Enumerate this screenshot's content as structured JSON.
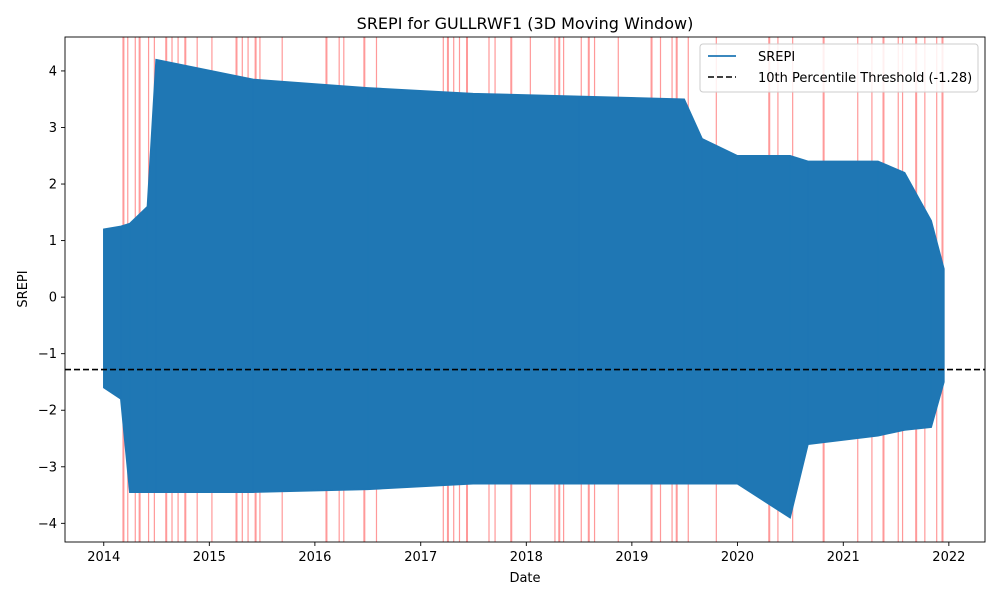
{
  "chart_data": {
    "type": "line",
    "title": "SREPI for GULLRWF1 (3D Moving Window)",
    "xlabel": "Date",
    "ylabel": "SREPI",
    "xlim": [
      "2013-08-20",
      "2022-05-06"
    ],
    "ylim": [
      -4.33,
      4.6
    ],
    "x_ticks": [
      "2014",
      "2015",
      "2016",
      "2017",
      "2018",
      "2019",
      "2020",
      "2021",
      "2022"
    ],
    "y_ticks": [
      -4,
      -3,
      -2,
      -1,
      0,
      1,
      2,
      3,
      4
    ],
    "grid": false,
    "legend_position": "top-right",
    "colors": {
      "series": "#1f77b4",
      "threshold": "#000000",
      "drought_band": "#ff8080"
    },
    "threshold": {
      "label": "10th Percentile Threshold (-1.28)",
      "value": -1.28
    },
    "series": [
      {
        "name": "SREPI",
        "envelope": [
          {
            "date": "2014-01-01",
            "min": -1.6,
            "max": 1.2
          },
          {
            "date": "2014-03-01",
            "min": -1.8,
            "max": 1.25
          },
          {
            "date": "2014-04-01",
            "min": -3.45,
            "max": 1.3
          },
          {
            "date": "2014-06-01",
            "min": -3.45,
            "max": 1.6
          },
          {
            "date": "2014-07-01",
            "min": -3.45,
            "max": 4.2
          },
          {
            "date": "2015-06-01",
            "min": -3.45,
            "max": 3.85
          },
          {
            "date": "2016-07-01",
            "min": -3.4,
            "max": 3.7
          },
          {
            "date": "2017-07-01",
            "min": -3.3,
            "max": 3.6
          },
          {
            "date": "2018-07-01",
            "min": -3.3,
            "max": 3.55
          },
          {
            "date": "2019-07-01",
            "min": -3.3,
            "max": 3.5
          },
          {
            "date": "2019-09-01",
            "min": -3.3,
            "max": 2.8
          },
          {
            "date": "2020-01-01",
            "min": -3.3,
            "max": 2.5
          },
          {
            "date": "2020-07-01",
            "min": -3.9,
            "max": 2.5
          },
          {
            "date": "2020-09-01",
            "min": -2.6,
            "max": 2.4
          },
          {
            "date": "2021-05-01",
            "min": -2.45,
            "max": 2.4
          },
          {
            "date": "2021-08-01",
            "min": -2.35,
            "max": 2.2
          },
          {
            "date": "2021-11-01",
            "min": -2.3,
            "max": 1.35
          },
          {
            "date": "2021-12-15",
            "min": -1.5,
            "max": 0.5
          }
        ]
      }
    ],
    "drought_periods": [
      "2014-03-10",
      "2014-03-25",
      "2014-04-20",
      "2014-05-05",
      "2014-06-05",
      "2014-06-25",
      "2014-08-05",
      "2014-08-25",
      "2014-09-15",
      "2014-10-10",
      "2014-11-20",
      "2015-01-10",
      "2015-04-05",
      "2015-04-25",
      "2015-05-15",
      "2015-06-10",
      "2015-06-25",
      "2015-09-10",
      "2016-02-10",
      "2016-03-25",
      "2016-04-10",
      "2016-06-20",
      "2016-08-01",
      "2017-03-20",
      "2017-04-05",
      "2017-04-25",
      "2017-05-15",
      "2017-06-10",
      "2017-08-25",
      "2017-09-15",
      "2017-11-10",
      "2018-01-15",
      "2018-04-10",
      "2018-04-25",
      "2018-05-10",
      "2018-07-10",
      "2018-08-05",
      "2018-08-25",
      "2018-11-15",
      "2019-03-10",
      "2019-04-10",
      "2019-05-20",
      "2019-06-05",
      "2019-07-15",
      "2019-10-20",
      "2020-04-20",
      "2020-05-20",
      "2020-07-10",
      "2020-10-25",
      "2021-02-20",
      "2021-04-10",
      "2021-05-20",
      "2021-07-10",
      "2021-07-25",
      "2021-09-10",
      "2021-10-10",
      "2021-11-20",
      "2021-12-10"
    ]
  }
}
